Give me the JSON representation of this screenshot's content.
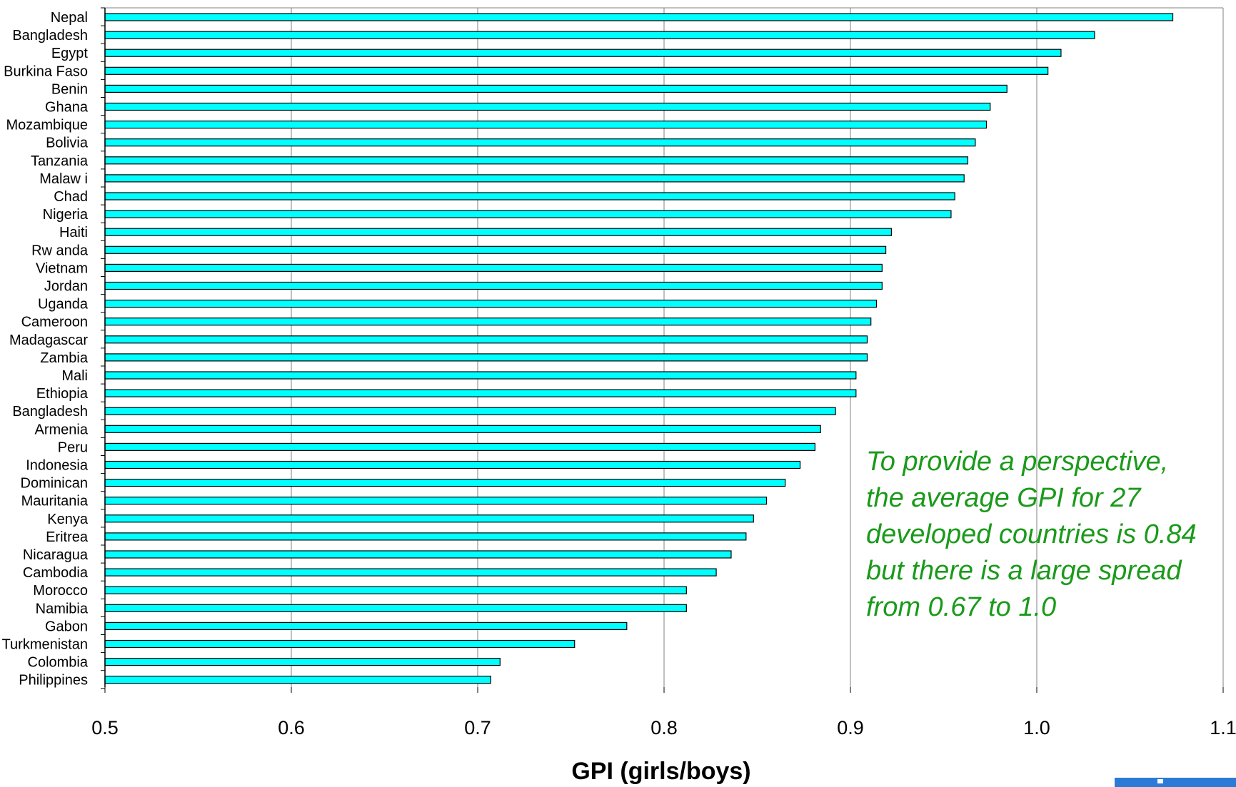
{
  "chart_data": {
    "type": "bar",
    "orientation": "horizontal",
    "categories": [
      "Nepal",
      "Bangladesh",
      "Egypt",
      "Burkina Faso",
      "Benin",
      "Ghana",
      "Mozambique",
      "Bolivia",
      "Tanzania",
      "Malaw i",
      "Chad",
      "Nigeria",
      "Haiti",
      "Rw anda",
      "Vietnam",
      "Jordan",
      "Uganda",
      "Cameroon",
      "Madagascar",
      "Zambia",
      "Mali",
      "Ethiopia",
      "Bangladesh",
      "Armenia",
      "Peru",
      "Indonesia",
      "Dominican",
      "Mauritania",
      "Kenya",
      "Eritrea",
      "Nicaragua",
      "Cambodia",
      "Morocco",
      "Namibia",
      "Gabon",
      "Turkmenistan",
      "Colombia",
      "Philippines"
    ],
    "values": [
      1.073,
      1.031,
      1.013,
      1.006,
      0.984,
      0.975,
      0.973,
      0.967,
      0.963,
      0.961,
      0.956,
      0.954,
      0.922,
      0.919,
      0.917,
      0.917,
      0.914,
      0.911,
      0.909,
      0.909,
      0.903,
      0.903,
      0.892,
      0.884,
      0.881,
      0.873,
      0.865,
      0.855,
      0.848,
      0.844,
      0.836,
      0.828,
      0.812,
      0.812,
      0.78,
      0.752,
      0.712,
      0.707
    ],
    "xlabel": "GPI (girls/boys)",
    "ylabel": "",
    "xlim": [
      0.5,
      1.1
    ],
    "xticks": [
      "0.5",
      "0.6",
      "0.7",
      "0.8",
      "0.9",
      "1.0",
      "1.1"
    ],
    "grid": "vertical",
    "bar_color": "#00ffff",
    "annotation_lines": [
      "To provide a perspective,",
      "the average GPI for 27",
      "developed countries is 0.84",
      "but there is a large spread",
      "from 0.67 to 1.0"
    ],
    "annotation_color": "#1a9a1a"
  }
}
